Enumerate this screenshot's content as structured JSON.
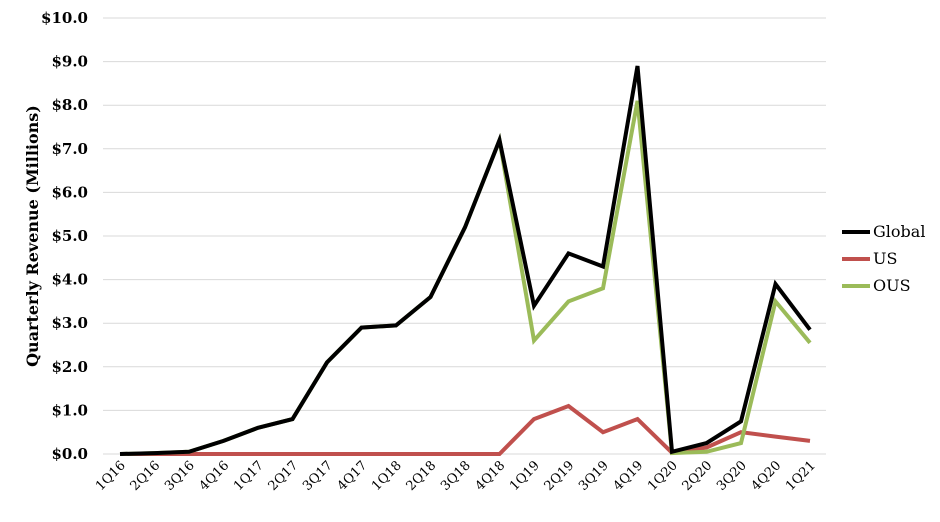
{
  "chart_data": {
    "type": "line",
    "title": "",
    "xlabel": "",
    "ylabel": "Quarterly Revenue (Millions)",
    "ylim": [
      0,
      10
    ],
    "yticks": [
      "$0.0",
      "$1.0",
      "$2.0",
      "$3.0",
      "$4.0",
      "$5.0",
      "$6.0",
      "$7.0",
      "$8.0",
      "$9.0",
      "$10.0"
    ],
    "grid": true,
    "legend_position": "right",
    "categories": [
      "1Q16",
      "2Q16",
      "3Q16",
      "4Q16",
      "1Q17",
      "2Q17",
      "3Q17",
      "4Q17",
      "1Q18",
      "2Q18",
      "3Q18",
      "4Q18",
      "1Q19",
      "2Q19",
      "3Q19",
      "4Q19",
      "1Q20",
      "2Q20",
      "3Q20",
      "4Q20",
      "1Q21"
    ],
    "series": [
      {
        "name": "Global",
        "color": "#000000",
        "values": [
          0,
          0.02,
          0.05,
          0.3,
          0.6,
          0.8,
          2.1,
          2.9,
          2.95,
          3.6,
          5.2,
          7.2,
          3.4,
          4.6,
          4.3,
          8.9,
          0.05,
          0.25,
          0.75,
          3.9,
          2.85
        ]
      },
      {
        "name": "US",
        "color": "#c0504d",
        "values": [
          0,
          0,
          0,
          0,
          0,
          0,
          0,
          0,
          0,
          0,
          0,
          0,
          0.8,
          1.1,
          0.5,
          0.8,
          0.03,
          0.15,
          0.5,
          0.4,
          0.3
        ]
      },
      {
        "name": "OUS",
        "color": "#9bbb59",
        "values": [
          0,
          0.02,
          0.05,
          0.3,
          0.6,
          0.8,
          2.1,
          2.9,
          2.95,
          3.6,
          5.2,
          7.2,
          2.6,
          3.5,
          3.8,
          8.1,
          0.02,
          0.05,
          0.25,
          3.5,
          2.55
        ]
      }
    ]
  }
}
